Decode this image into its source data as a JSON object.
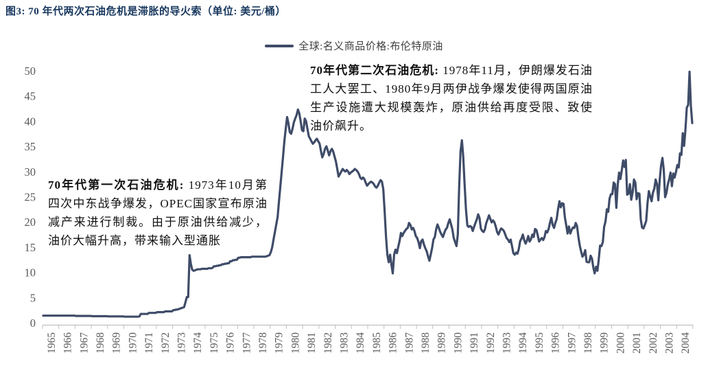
{
  "title": "图3: 70 年代两次石油危机是滞胀的导火索（单位: 美元/桶）",
  "legend": {
    "label": "全球:名义商品价格:布伦特原油"
  },
  "annotations": {
    "first_crisis": {
      "lead": "70年代第一次石油危机:",
      "body": " 1973年10月第四次中东战争爆发，OPEC国家宣布原油减产来进行制裁。由于原油供给减少，油价大幅升高，带来输入型通胀"
    },
    "second_crisis": {
      "lead": "70年代第二次石油危机:",
      "body": " 1978年11月，伊朗爆发石油工人大罢工、1980年9月两伊战争爆发使得两国原油生产设施遭大规模轰炸，原油供给再度受限、致使油价飙升。"
    }
  },
  "colors": {
    "line": "#3f4c68",
    "title": "#17375e",
    "axis_text": "#595959",
    "axis_line": "#c0c0c0"
  },
  "chart_data": {
    "type": "line",
    "title": "图3: 70 年代两次石油危机是滞胀的导火索",
    "unit": "美元/桶",
    "series_name": "全球:名义商品价格:布伦特原油",
    "legend_position": "top-center",
    "grid": false,
    "frequency": "monthly",
    "start_year": 1965,
    "ylim": [
      0,
      50
    ],
    "y_ticks": [
      0,
      5,
      10,
      15,
      20,
      25,
      30,
      35,
      40,
      45,
      50
    ],
    "x_tick_labels": [
      "1965",
      "1966",
      "1967",
      "1968",
      "1969",
      "1970",
      "1971",
      "1972",
      "1973",
      "1974",
      "1975",
      "1976",
      "1977",
      "1978",
      "1979",
      "1980",
      "1981",
      "1982",
      "1983",
      "1984",
      "1985",
      "1986",
      "1987",
      "1988",
      "1989",
      "1990",
      "1991",
      "1992",
      "1993",
      "1994",
      "1995",
      "1996",
      "1997",
      "1998",
      "1999",
      "2000",
      "2001",
      "2002",
      "2003",
      "2004"
    ],
    "monthly_values": [
      1.4,
      1.4,
      1.4,
      1.4,
      1.4,
      1.4,
      1.4,
      1.4,
      1.4,
      1.4,
      1.4,
      1.4,
      1.4,
      1.4,
      1.4,
      1.4,
      1.4,
      1.4,
      1.4,
      1.4,
      1.4,
      1.4,
      1.4,
      1.4,
      1.35,
      1.35,
      1.35,
      1.35,
      1.35,
      1.35,
      1.35,
      1.35,
      1.35,
      1.35,
      1.35,
      1.35,
      1.3,
      1.3,
      1.3,
      1.3,
      1.3,
      1.3,
      1.3,
      1.3,
      1.3,
      1.3,
      1.3,
      1.3,
      1.25,
      1.25,
      1.25,
      1.25,
      1.25,
      1.25,
      1.25,
      1.25,
      1.25,
      1.25,
      1.25,
      1.25,
      1.2,
      1.2,
      1.2,
      1.2,
      1.2,
      1.2,
      1.2,
      1.2,
      1.2,
      1.2,
      1.2,
      1.25,
      1.75,
      1.75,
      1.75,
      1.75,
      1.75,
      1.75,
      1.95,
      1.95,
      1.95,
      1.95,
      1.95,
      1.95,
      2.1,
      2.1,
      2.1,
      2.1,
      2.1,
      2.1,
      2.25,
      2.25,
      2.25,
      2.25,
      2.25,
      2.25,
      2.5,
      2.5,
      2.6,
      2.6,
      2.7,
      2.8,
      2.9,
      3.0,
      3.1,
      4.1,
      5.1,
      5.1,
      13.4,
      11.6,
      10.5,
      10.3,
      10.4,
      10.5,
      10.6,
      10.6,
      10.6,
      10.7,
      10.7,
      10.7,
      10.7,
      10.7,
      10.8,
      10.8,
      10.8,
      10.9,
      11.2,
      11.2,
      11.3,
      11.3,
      11.4,
      11.4,
      11.6,
      11.6,
      11.7,
      11.7,
      11.8,
      11.8,
      12.2,
      12.2,
      12.4,
      12.4,
      12.5,
      12.5,
      12.9,
      12.9,
      13.0,
      13.0,
      13.0,
      13.0,
      13.0,
      13.0,
      13.0,
      13.0,
      13.1,
      13.1,
      13.1,
      13.1,
      13.1,
      13.1,
      13.1,
      13.1,
      13.1,
      13.1,
      13.1,
      13.2,
      13.3,
      13.4,
      14.0,
      15.0,
      16.5,
      18.0,
      19.5,
      21.0,
      24.0,
      27.0,
      30.0,
      33.0,
      36.0,
      38.5,
      40.8,
      39.5,
      37.8,
      37.5,
      38.5,
      39.8,
      40.5,
      41.2,
      42.3,
      41.5,
      40.0,
      38.2,
      38.0,
      40.5,
      40.0,
      38.5,
      37.0,
      36.5,
      36.0,
      35.5,
      35.8,
      36.2,
      36.5,
      36.0,
      35.5,
      34.0,
      32.8,
      33.5,
      34.5,
      35.0,
      34.2,
      33.2,
      34.0,
      34.5,
      34.0,
      33.0,
      32.0,
      30.5,
      29.0,
      29.5,
      30.0,
      30.5,
      30.2,
      30.0,
      30.3,
      30.0,
      29.5,
      29.8,
      30.0,
      30.2,
      30.5,
      30.3,
      30.0,
      29.5,
      28.8,
      28.5,
      28.8,
      28.5,
      27.8,
      27.2,
      27.5,
      27.8,
      28.0,
      27.8,
      27.5,
      27.0,
      26.8,
      27.2,
      27.8,
      28.3,
      28.0,
      26.5,
      22.0,
      17.0,
      13.5,
      12.0,
      13.5,
      11.5,
      9.8,
      13.5,
      14.5,
      13.8,
      15.0,
      16.2,
      17.8,
      17.2,
      17.8,
      18.2,
      18.6,
      18.8,
      19.8,
      19.4,
      18.5,
      18.8,
      18.2,
      17.2,
      16.8,
      16.0,
      14.8,
      16.2,
      16.5,
      15.5,
      14.8,
      14.2,
      13.2,
      12.3,
      13.5,
      14.8,
      16.5,
      17.0,
      18.5,
      19.5,
      18.8,
      18.0,
      17.5,
      17.0,
      17.8,
      18.5,
      18.8,
      19.8,
      20.5,
      19.5,
      18.5,
      16.8,
      16.0,
      15.2,
      17.5,
      27.0,
      34.0,
      36.2,
      33.0,
      27.5,
      22.5,
      19.3,
      19.0,
      19.2,
      19.0,
      18.2,
      19.0,
      19.8,
      20.5,
      21.5,
      20.8,
      18.7,
      18.2,
      18.0,
      18.5,
      19.8,
      20.5,
      21.3,
      20.6,
      19.9,
      20.3,
      19.9,
      19.1,
      18.0,
      17.5,
      18.2,
      18.7,
      18.5,
      18.2,
      17.5,
      16.8,
      16.5,
      16.0,
      16.5,
      15.2,
      13.8,
      13.5,
      13.9,
      13.7,
      14.6,
      16.2,
      16.7,
      17.5,
      16.4,
      15.7,
      16.3,
      17.2,
      16.1,
      16.6,
      17.5,
      17.0,
      18.6,
      18.4,
      17.3,
      16.1,
      16.5,
      16.8,
      16.4,
      17.0,
      18.2,
      17.9,
      18.6,
      19.8,
      20.8,
      19.4,
      18.8,
      19.8,
      20.6,
      22.6,
      24.1,
      22.9,
      23.7,
      23.6,
      20.9,
      19.4,
      17.7,
      19.1,
      17.7,
      18.4,
      18.9,
      18.8,
      19.8,
      19.2,
      17.0,
      15.3,
      14.1,
      13.1,
      13.5,
      14.4,
      12.1,
      12.0,
      12.0,
      13.3,
      12.7,
      11.0,
      9.8,
      11.1,
      10.3,
      12.5,
      15.3,
      15.2,
      16.0,
      19.0,
      20.1,
      22.5,
      22.0,
      24.6,
      25.5,
      25.5,
      27.8,
      27.5,
      22.8,
      27.4,
      29.8,
      28.5,
      30.2,
      32.2,
      30.9,
      32.3,
      25.4,
      25.6,
      27.5,
      24.4,
      25.8,
      28.4,
      27.8,
      24.5,
      25.7,
      25.6,
      20.5,
      18.9,
      18.7,
      19.4,
      20.2,
      23.7,
      26.1,
      25.1,
      24.1,
      25.8,
      26.6,
      28.4,
      27.5,
      24.3,
      28.3,
      31.2,
      32.7,
      30.4,
      24.9,
      25.8,
      27.5,
      28.4,
      29.8,
      27.1,
      29.6,
      28.8,
      29.9,
      31.3,
      30.8,
      33.6,
      33.3,
      37.6,
      35.1,
      38.3,
      42.7,
      43.2,
      49.8,
      43.1,
      39.6
    ]
  }
}
